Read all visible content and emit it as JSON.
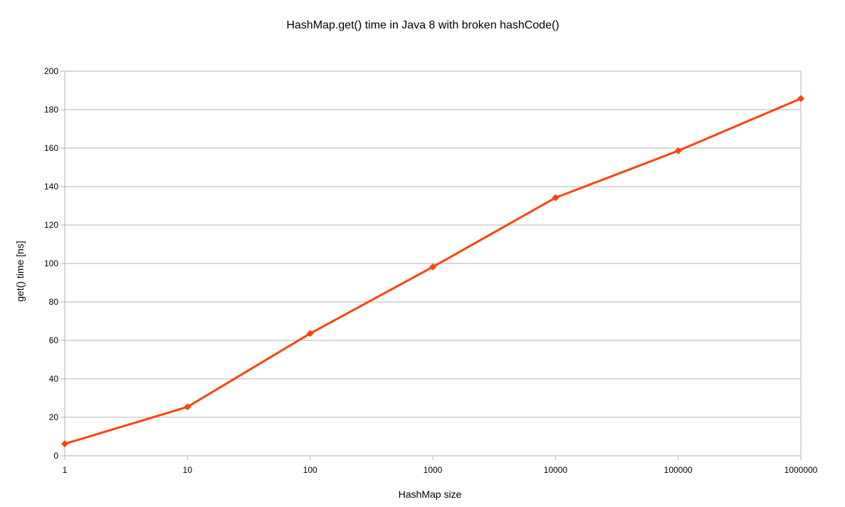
{
  "chart_data": {
    "type": "line",
    "title": "HashMap.get() time in Java 8 with broken hashCode()",
    "xlabel": "HashMap size",
    "ylabel": "get() time [ns]",
    "x_scale": "log",
    "x": [
      1,
      10,
      100,
      1000,
      10000,
      100000,
      1000000
    ],
    "x_tick_labels": [
      "1",
      "10",
      "100",
      "1000",
      "10000",
      "100000",
      "1000000"
    ],
    "y_ticks": [
      "0",
      "20",
      "40",
      "60",
      "80",
      "100",
      "120",
      "140",
      "160",
      "180",
      "200"
    ],
    "ylim": [
      0,
      200
    ],
    "grid": true,
    "legend": "none",
    "series": [
      {
        "values": [
          6.2,
          25.4,
          63.6,
          98.2,
          134.2,
          158.6,
          185.8
        ],
        "color": "#ff420e",
        "marker": "diamond"
      }
    ]
  }
}
